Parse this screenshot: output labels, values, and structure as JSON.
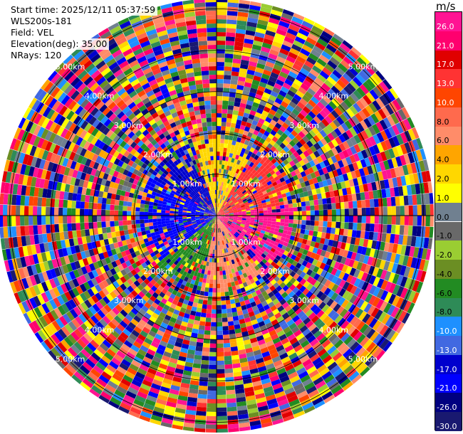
{
  "info": {
    "start_time": "Start time: 2025/12/11 05:37:59",
    "instrument": "WLS200s-181",
    "field": "Field: VEL",
    "elevation": "Elevation(deg): 35.00",
    "nrays": "NRays: 120"
  },
  "colorbar": {
    "unit": "m/s",
    "ticks": [
      "26.0",
      "21.0",
      "17.0",
      "13.0",
      "10.0",
      "8.0",
      "6.0",
      "4.0",
      "2.0",
      "1.0",
      "0.0",
      "-1.0",
      "-2.0",
      "-4.0",
      "-6.0",
      "-8.0",
      "-10.0",
      "-13.0",
      "-17.0",
      "-21.0",
      "-26.0",
      "-30.0"
    ],
    "colors": [
      "#ff1493",
      "#ff006e",
      "#e00000",
      "#ff3333",
      "#ff4500",
      "#ff6a4d",
      "#ff8c69",
      "#ffa500",
      "#ffd700",
      "#ffff00",
      "#708090",
      "#696969",
      "#9acd32",
      "#6b8e23",
      "#228b22",
      "#2e8b57",
      "#1e90ff",
      "#4169e1",
      "#0000cd",
      "#0000ff",
      "#000080",
      "#191970"
    ]
  },
  "chart_data": {
    "type": "heatmap",
    "projection": "polar-ppi",
    "field": "VEL",
    "units": "m/s",
    "elevation_deg": 35.0,
    "n_rays": 120,
    "range_rings_km": [
      1.0,
      2.0,
      3.0,
      4.0,
      5.0
    ],
    "ring_label_texts": [
      "1.00km",
      "2.00km",
      "3.00km",
      "4.00km",
      "5.00km"
    ],
    "max_range_km": 5.25,
    "value_range": [
      -30.0,
      26.0
    ]
  }
}
